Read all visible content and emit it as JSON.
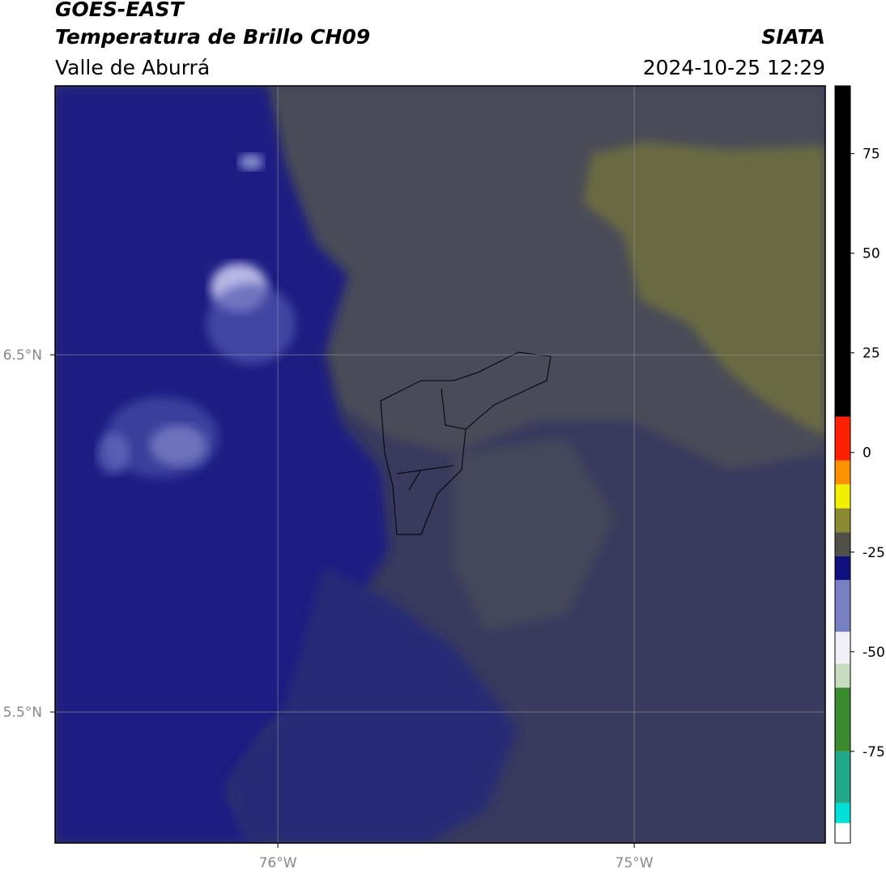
{
  "header": {
    "title": "GOES-EAST",
    "subtitle": "Temperatura de Brillo CH09",
    "region": "Valle de Aburrá",
    "source": "SIATA",
    "datetime": "2024-10-25 12:29"
  },
  "map": {
    "xlim": [
      -76.625,
      -74.464
    ],
    "ylim": [
      5.133,
      7.253
    ],
    "xticks": [
      {
        "value": -76,
        "label": "76°W"
      },
      {
        "value": -75,
        "label": "75°W"
      }
    ],
    "yticks": [
      {
        "value": 6.5,
        "label": "6.5°N"
      },
      {
        "value": 5.5,
        "label": "5.5°N"
      }
    ],
    "grid": true
  },
  "colorbar": {
    "clim": [
      -98,
      92
    ],
    "ticks": [
      75,
      50,
      25,
      0,
      -25,
      -50,
      -75
    ],
    "segments": [
      {
        "from": -98,
        "to": -93,
        "color": "#ffffff"
      },
      {
        "from": -93,
        "to": -88,
        "color": "#00e0d8"
      },
      {
        "from": -88,
        "to": -75,
        "color": "#22a88a"
      },
      {
        "from": -75,
        "to": -59,
        "color": "#3a8a30"
      },
      {
        "from": -59,
        "to": -53,
        "color": "#c8dcc0"
      },
      {
        "from": -53,
        "to": -45,
        "color": "#f0f0f8"
      },
      {
        "from": -45,
        "to": -32,
        "color": "#7880c4"
      },
      {
        "from": -32,
        "to": -26,
        "color": "#10107e"
      },
      {
        "from": -26,
        "to": -20,
        "color": "#505048"
      },
      {
        "from": -20,
        "to": -14,
        "color": "#8a8a30"
      },
      {
        "from": -14,
        "to": -8,
        "color": "#f0f000"
      },
      {
        "from": -8,
        "to": -2,
        "color": "#ff9000"
      },
      {
        "from": -2,
        "to": 9,
        "color": "#ff2000"
      },
      {
        "from": 9,
        "to": 92,
        "color": "#000000"
      }
    ]
  }
}
